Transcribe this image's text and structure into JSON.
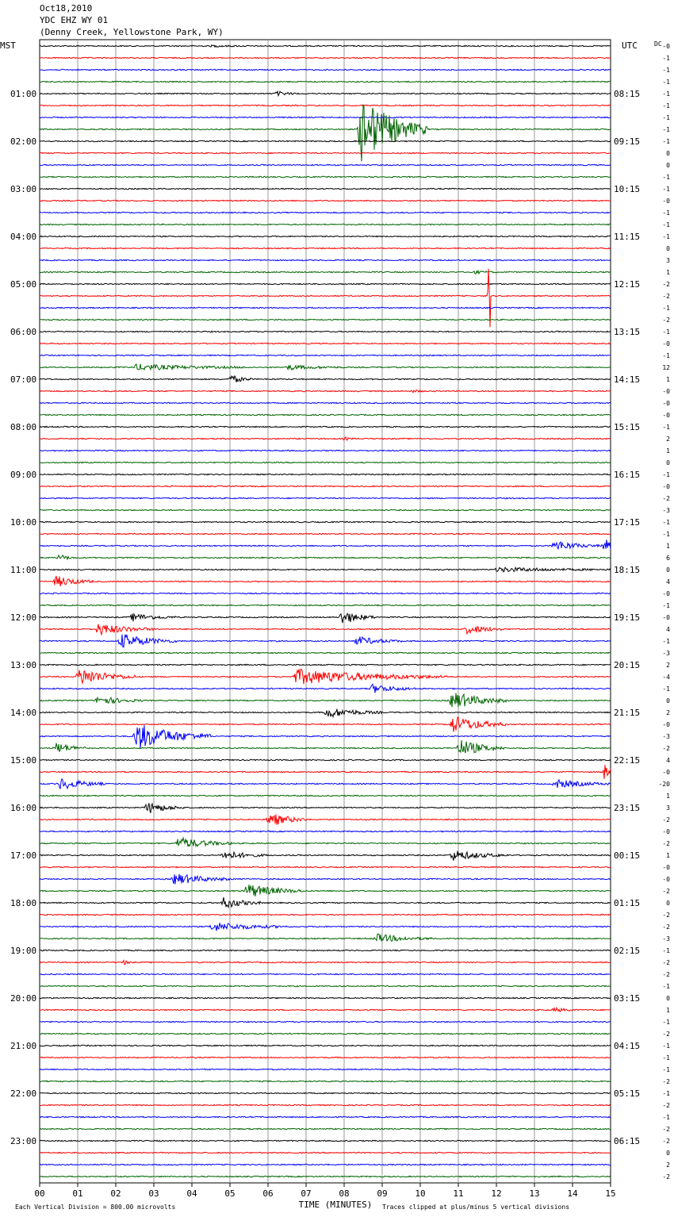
{
  "header": {
    "date": "Oct18,2010",
    "station": "YDC EHZ WY 01",
    "location": "(Denny Creek, Yellowstone Park, WY)"
  },
  "labels": {
    "left_tz": "MST",
    "right_tz": "UTC",
    "dc": "DC",
    "xlabel": "TIME (MINUTES)",
    "scale_note": "Each Vertical Division =  800.00 microvolts",
    "clip_note": "Traces clipped at plus/minus 5 vertical divisions"
  },
  "colors": [
    "#000000",
    "#ff0000",
    "#0000ff",
    "#006400"
  ],
  "chart_data": {
    "type": "line",
    "title": "Oct18,2010 YDC EHZ WY 01 (Denny Creek, Yellowstone Park, WY)",
    "xlabel": "TIME (MINUTES)",
    "xlim": [
      0,
      15
    ],
    "x_ticks": [
      "00",
      "01",
      "02",
      "03",
      "04",
      "05",
      "06",
      "07",
      "08",
      "09",
      "10",
      "11",
      "12",
      "13",
      "14",
      "15"
    ],
    "lines_per_hour": 4,
    "minutes_per_line": 15,
    "left_labels": [
      "",
      "01:00",
      "02:00",
      "03:00",
      "04:00",
      "05:00",
      "06:00",
      "07:00",
      "08:00",
      "09:00",
      "10:00",
      "11:00",
      "12:00",
      "13:00",
      "14:00",
      "15:00",
      "16:00",
      "17:00",
      "18:00",
      "19:00",
      "20:00",
      "21:00",
      "22:00",
      "23:00"
    ],
    "right_labels": [
      "",
      "08:15",
      "09:15",
      "10:15",
      "11:15",
      "12:15",
      "13:15",
      "14:15",
      "15:15",
      "16:15",
      "17:15",
      "18:15",
      "19:15",
      "20:15",
      "21:15",
      "22:15",
      "23:15",
      "00:15",
      "01:15",
      "02:15",
      "03:15",
      "04:15",
      "05:15",
      "06:15"
    ],
    "dc_offsets": [
      "-0",
      "-1",
      "-1",
      "-1",
      "-1",
      "-1",
      "-1",
      "-1",
      "-1",
      "0",
      "0",
      "-1",
      "-1",
      "-0",
      "-1",
      "-1",
      "-1",
      "0",
      "3",
      "1",
      "-2",
      "-2",
      "-1",
      "-2",
      "-1",
      "-0",
      "-1",
      "12",
      "1",
      "-0",
      "-0",
      "-0",
      "-1",
      "2",
      "1",
      "0",
      "-1",
      "-0",
      "-2",
      "-3",
      "-1",
      "-1",
      "1",
      "6",
      "0",
      "4",
      "-0",
      "-1",
      "-0",
      "4",
      "-1",
      "-3",
      "2",
      "-4",
      "-1",
      "0",
      "2",
      "-0",
      "-3",
      "-2",
      "4",
      "-0",
      "-20",
      "1",
      "3",
      "-2",
      "-0",
      "-2",
      "1",
      "-0",
      "-0",
      "-2",
      "0",
      "-2",
      "-2",
      "-3",
      "-1",
      "-2",
      "-2",
      "-1",
      "0",
      "1",
      "-1",
      "-2",
      "-1",
      "-1",
      "-1",
      "-2",
      "-1",
      "-2",
      "-1",
      "-2",
      "-2",
      "0",
      "2",
      "-2"
    ],
    "events": [
      {
        "line": 0,
        "min": 4.5,
        "amp": 1,
        "dur": 1.0
      },
      {
        "line": 4,
        "min": 6.2,
        "amp": 3,
        "dur": 0.6
      },
      {
        "line": 7,
        "min": 8.4,
        "amp": 45,
        "dur": 1.8
      },
      {
        "line": 19,
        "min": 11.4,
        "amp": 2,
        "dur": 0.6
      },
      {
        "line": 21,
        "min": 11.8,
        "amp": 40,
        "dur": 0.05
      },
      {
        "line": 27,
        "min": 2.5,
        "amp": 4,
        "dur": 3.0
      },
      {
        "line": 27,
        "min": 6.5,
        "amp": 3,
        "dur": 1.5
      },
      {
        "line": 28,
        "min": 5.0,
        "amp": 6,
        "dur": 0.6
      },
      {
        "line": 29,
        "min": 9.8,
        "amp": 2,
        "dur": 0.3
      },
      {
        "line": 33,
        "min": 8.0,
        "amp": 2,
        "dur": 0.3
      },
      {
        "line": 42,
        "min": 13.5,
        "amp": 7,
        "dur": 1.2
      },
      {
        "line": 42,
        "min": 14.8,
        "amp": 10,
        "dur": 0.6
      },
      {
        "line": 43,
        "min": 0.5,
        "amp": 5,
        "dur": 0.4
      },
      {
        "line": 44,
        "min": 12.0,
        "amp": 3,
        "dur": 3.0
      },
      {
        "line": 45,
        "min": 0.4,
        "amp": 8,
        "dur": 1.0
      },
      {
        "line": 48,
        "min": 2.4,
        "amp": 5,
        "dur": 1.2
      },
      {
        "line": 48,
        "min": 7.9,
        "amp": 10,
        "dur": 0.9
      },
      {
        "line": 49,
        "min": 1.5,
        "amp": 8,
        "dur": 1.5
      },
      {
        "line": 49,
        "min": 11.2,
        "amp": 7,
        "dur": 1.0
      },
      {
        "line": 50,
        "min": 2.1,
        "amp": 10,
        "dur": 1.5
      },
      {
        "line": 50,
        "min": 8.3,
        "amp": 6,
        "dur": 1.2
      },
      {
        "line": 53,
        "min": 1.0,
        "amp": 12,
        "dur": 1.5
      },
      {
        "line": 53,
        "min": 6.7,
        "amp": 10,
        "dur": 4.0
      },
      {
        "line": 54,
        "min": 8.7,
        "amp": 6,
        "dur": 1.2
      },
      {
        "line": 55,
        "min": 1.5,
        "amp": 6,
        "dur": 1.2
      },
      {
        "line": 55,
        "min": 10.8,
        "amp": 12,
        "dur": 1.5
      },
      {
        "line": 56,
        "min": 7.5,
        "amp": 7,
        "dur": 1.5
      },
      {
        "line": 57,
        "min": 10.8,
        "amp": 12,
        "dur": 1.5
      },
      {
        "line": 58,
        "min": 2.5,
        "amp": 18,
        "dur": 2.0
      },
      {
        "line": 59,
        "min": 0.4,
        "amp": 8,
        "dur": 0.8
      },
      {
        "line": 59,
        "min": 11.0,
        "amp": 12,
        "dur": 1.2
      },
      {
        "line": 61,
        "min": 14.8,
        "amp": 12,
        "dur": 0.4
      },
      {
        "line": 62,
        "min": 0.5,
        "amp": 8,
        "dur": 1.2
      },
      {
        "line": 62,
        "min": 13.5,
        "amp": 6,
        "dur": 1.5
      },
      {
        "line": 64,
        "min": 2.8,
        "amp": 8,
        "dur": 1.0
      },
      {
        "line": 65,
        "min": 6.0,
        "amp": 10,
        "dur": 1.0
      },
      {
        "line": 67,
        "min": 3.6,
        "amp": 8,
        "dur": 1.5
      },
      {
        "line": 68,
        "min": 4.8,
        "amp": 6,
        "dur": 1.2
      },
      {
        "line": 68,
        "min": 10.8,
        "amp": 7,
        "dur": 1.5
      },
      {
        "line": 70,
        "min": 3.5,
        "amp": 8,
        "dur": 1.5
      },
      {
        "line": 71,
        "min": 5.4,
        "amp": 10,
        "dur": 1.5
      },
      {
        "line": 72,
        "min": 4.8,
        "amp": 8,
        "dur": 1.0
      },
      {
        "line": 74,
        "min": 4.5,
        "amp": 6,
        "dur": 2.0
      },
      {
        "line": 75,
        "min": 8.8,
        "amp": 6,
        "dur": 1.5
      },
      {
        "line": 77,
        "min": 2.2,
        "amp": 4,
        "dur": 0.2
      },
      {
        "line": 81,
        "min": 13.5,
        "amp": 3,
        "dur": 0.6
      }
    ]
  }
}
